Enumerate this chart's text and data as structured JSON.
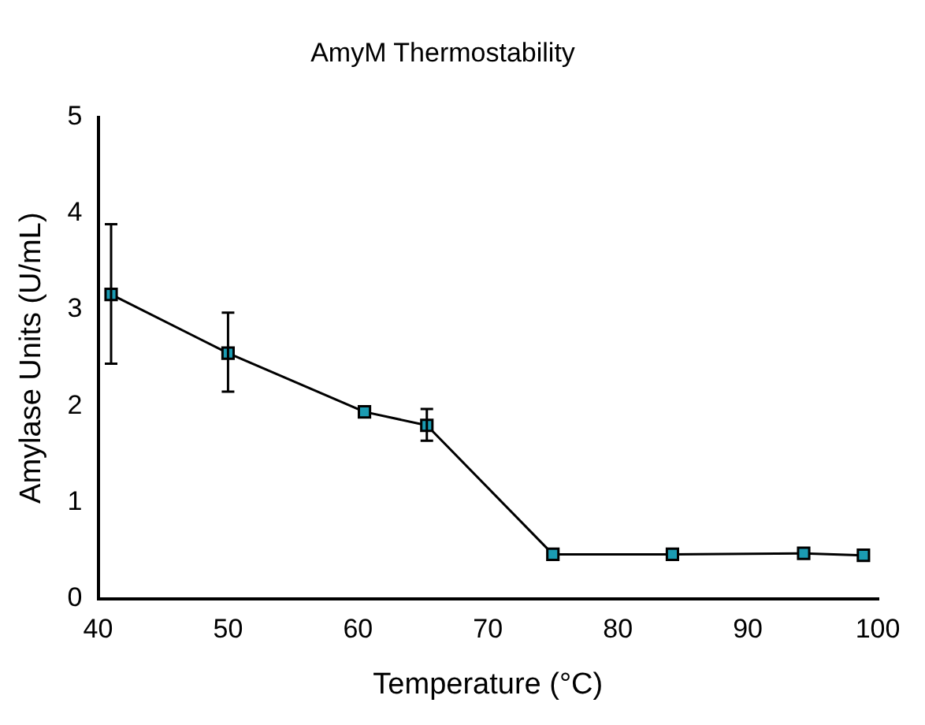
{
  "chart_data": {
    "type": "line",
    "title": "AmyM Thermostability",
    "xlabel": "Temperature (°C)",
    "ylabel": "Amylase Units (U/mL)",
    "x": [
      41,
      50,
      60.5,
      65.3,
      75,
      84.2,
      94.3,
      98.9
    ],
    "values": [
      3.16,
      2.55,
      1.94,
      1.8,
      0.46,
      0.46,
      0.47,
      0.45
    ],
    "errors": [
      [
        2.44,
        3.89
      ],
      [
        2.15,
        2.97
      ],
      null,
      [
        1.64,
        1.97
      ],
      null,
      null,
      null,
      null
    ],
    "color": "#1b9bb2",
    "marker": "square",
    "line_style": "solid",
    "grid": false,
    "legend": false,
    "xlim": [
      40,
      100
    ],
    "xticks": [
      40,
      50,
      60,
      70,
      80,
      90,
      100
    ],
    "ylim": [
      0,
      5
    ],
    "yticks": [
      0,
      1,
      2,
      3,
      4,
      5
    ]
  }
}
